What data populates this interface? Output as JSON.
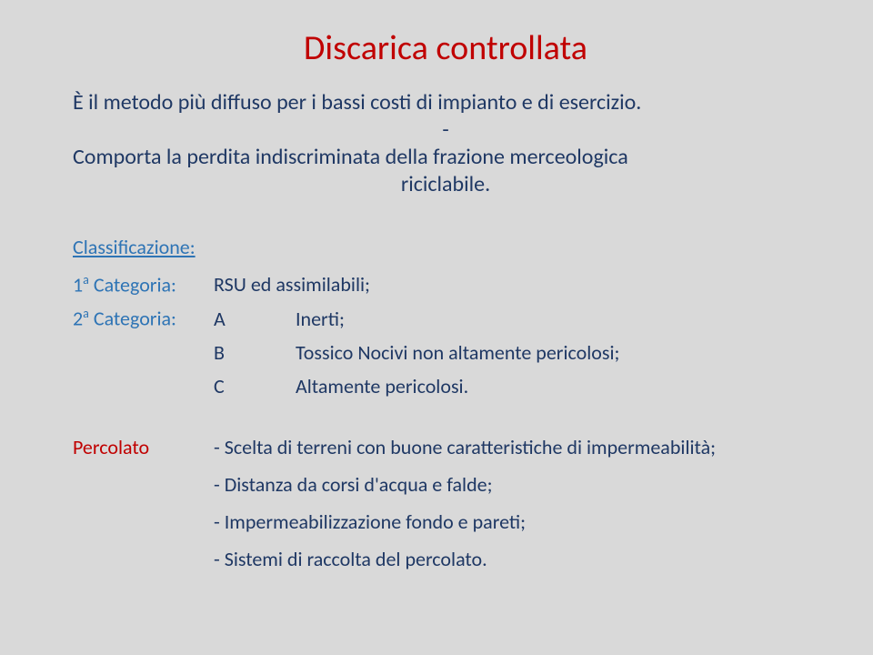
{
  "title": "Discarica controllata",
  "intro": {
    "line1": "È il metodo più diffuso per i bassi costi di impianto e di esercizio.",
    "line2": "-",
    "line3a": "Comporta la perdita indiscriminata della frazione merceologica",
    "line3b": "riciclabile."
  },
  "classif": {
    "header": "Classificazione:",
    "cat1_label_pre": "1",
    "cat1_label_sup": "a",
    "cat1_label_post": " Categoria:",
    "cat1_value": "RSU ed assimilabili;",
    "cat2_label_pre": "2",
    "cat2_label_sup": "a",
    "cat2_label_post": " Categoria:",
    "rows": [
      {
        "letter": "A",
        "text": "Inerti;"
      },
      {
        "letter": "B",
        "text": "Tossico Nocivi non altamente pericolosi;"
      },
      {
        "letter": "C",
        "text": "Altamente pericolosi."
      }
    ]
  },
  "percolato": {
    "label": "Percolato",
    "items": [
      "- Scelta di terreni con buone caratteristiche di impermeabilità;",
      "- Distanza da corsi d'acqua e falde;",
      "- Impermeabilizzazione fondo e pareti;",
      "- Sistemi di raccolta del percolato."
    ]
  },
  "colors": {
    "title": "#c00000",
    "body": "#1f3864",
    "classif": "#2e74b5",
    "percolato": "#c00000",
    "background": "#d9d9d9"
  }
}
